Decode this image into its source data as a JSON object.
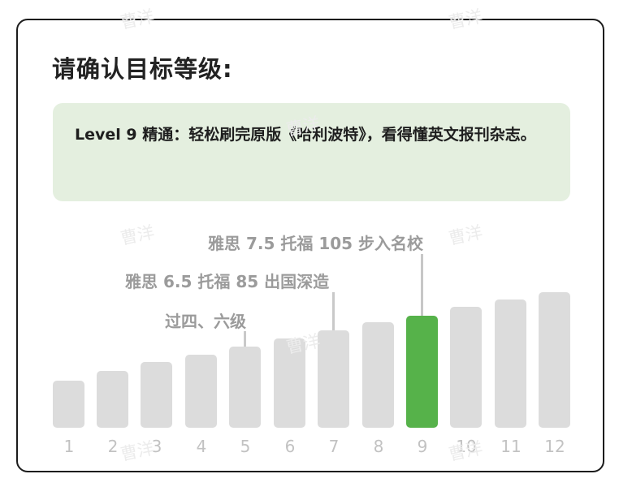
{
  "title": "请确认目标等级:",
  "selected_level": 9,
  "description": "Level 9 精通：轻松刷完原版《哈利波特》，看得懂英文报刊杂志。",
  "annotations": {
    "level5": "过四、六级",
    "level7": "雅思 6.5 托福 85 出国深造",
    "level9": "雅思 7.5 托福 105 步入名校"
  },
  "levels": [
    "1",
    "2",
    "3",
    "4",
    "5",
    "6",
    "7",
    "8",
    "9",
    "10",
    "11",
    "12"
  ],
  "watermark": "曹洋",
  "colors": {
    "selected_bar": "#56b24a",
    "bar": "#dcdcdc",
    "info_bg": "#e4efdf"
  }
}
